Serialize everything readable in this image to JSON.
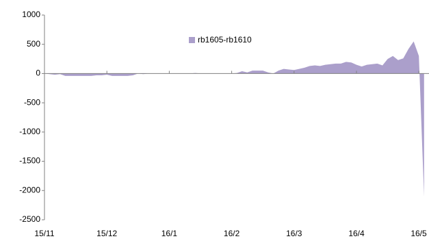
{
  "chart_data": {
    "type": "area",
    "categories": [
      "15/11",
      null,
      null,
      null,
      null,
      null,
      null,
      null,
      null,
      null,
      null,
      null,
      "15/12",
      null,
      null,
      null,
      null,
      null,
      null,
      null,
      null,
      null,
      null,
      null,
      "16/1",
      null,
      null,
      null,
      null,
      null,
      null,
      null,
      null,
      null,
      null,
      null,
      "16/2",
      null,
      null,
      null,
      null,
      null,
      null,
      null,
      null,
      null,
      null,
      null,
      "16/3",
      null,
      null,
      null,
      null,
      null,
      null,
      null,
      null,
      null,
      null,
      null,
      "16/4",
      null,
      null,
      null,
      null,
      null,
      null,
      null,
      null,
      null,
      null,
      null,
      "16/5",
      null
    ],
    "series": [
      {
        "name": "rb1605-rb1610",
        "color": "#ab9fcb",
        "values": [
          0,
          -10,
          -20,
          -10,
          -40,
          -40,
          -40,
          -40,
          -40,
          -40,
          -30,
          -30,
          -20,
          -40,
          -40,
          -40,
          -40,
          -30,
          0,
          -10,
          0,
          0,
          0,
          0,
          0,
          0,
          0,
          0,
          0,
          10,
          0,
          0,
          0,
          0,
          0,
          0,
          0,
          10,
          40,
          20,
          50,
          50,
          50,
          20,
          0,
          50,
          80,
          70,
          60,
          80,
          100,
          130,
          140,
          130,
          150,
          160,
          170,
          170,
          200,
          190,
          150,
          120,
          150,
          160,
          170,
          140,
          250,
          300,
          230,
          260,
          420,
          550,
          300,
          -2100
        ]
      }
    ],
    "ylim": [
      -2500,
      1000
    ],
    "yticks": [
      -2500,
      -2000,
      -1500,
      -1000,
      -500,
      0,
      500,
      1000
    ],
    "legend": "top"
  }
}
